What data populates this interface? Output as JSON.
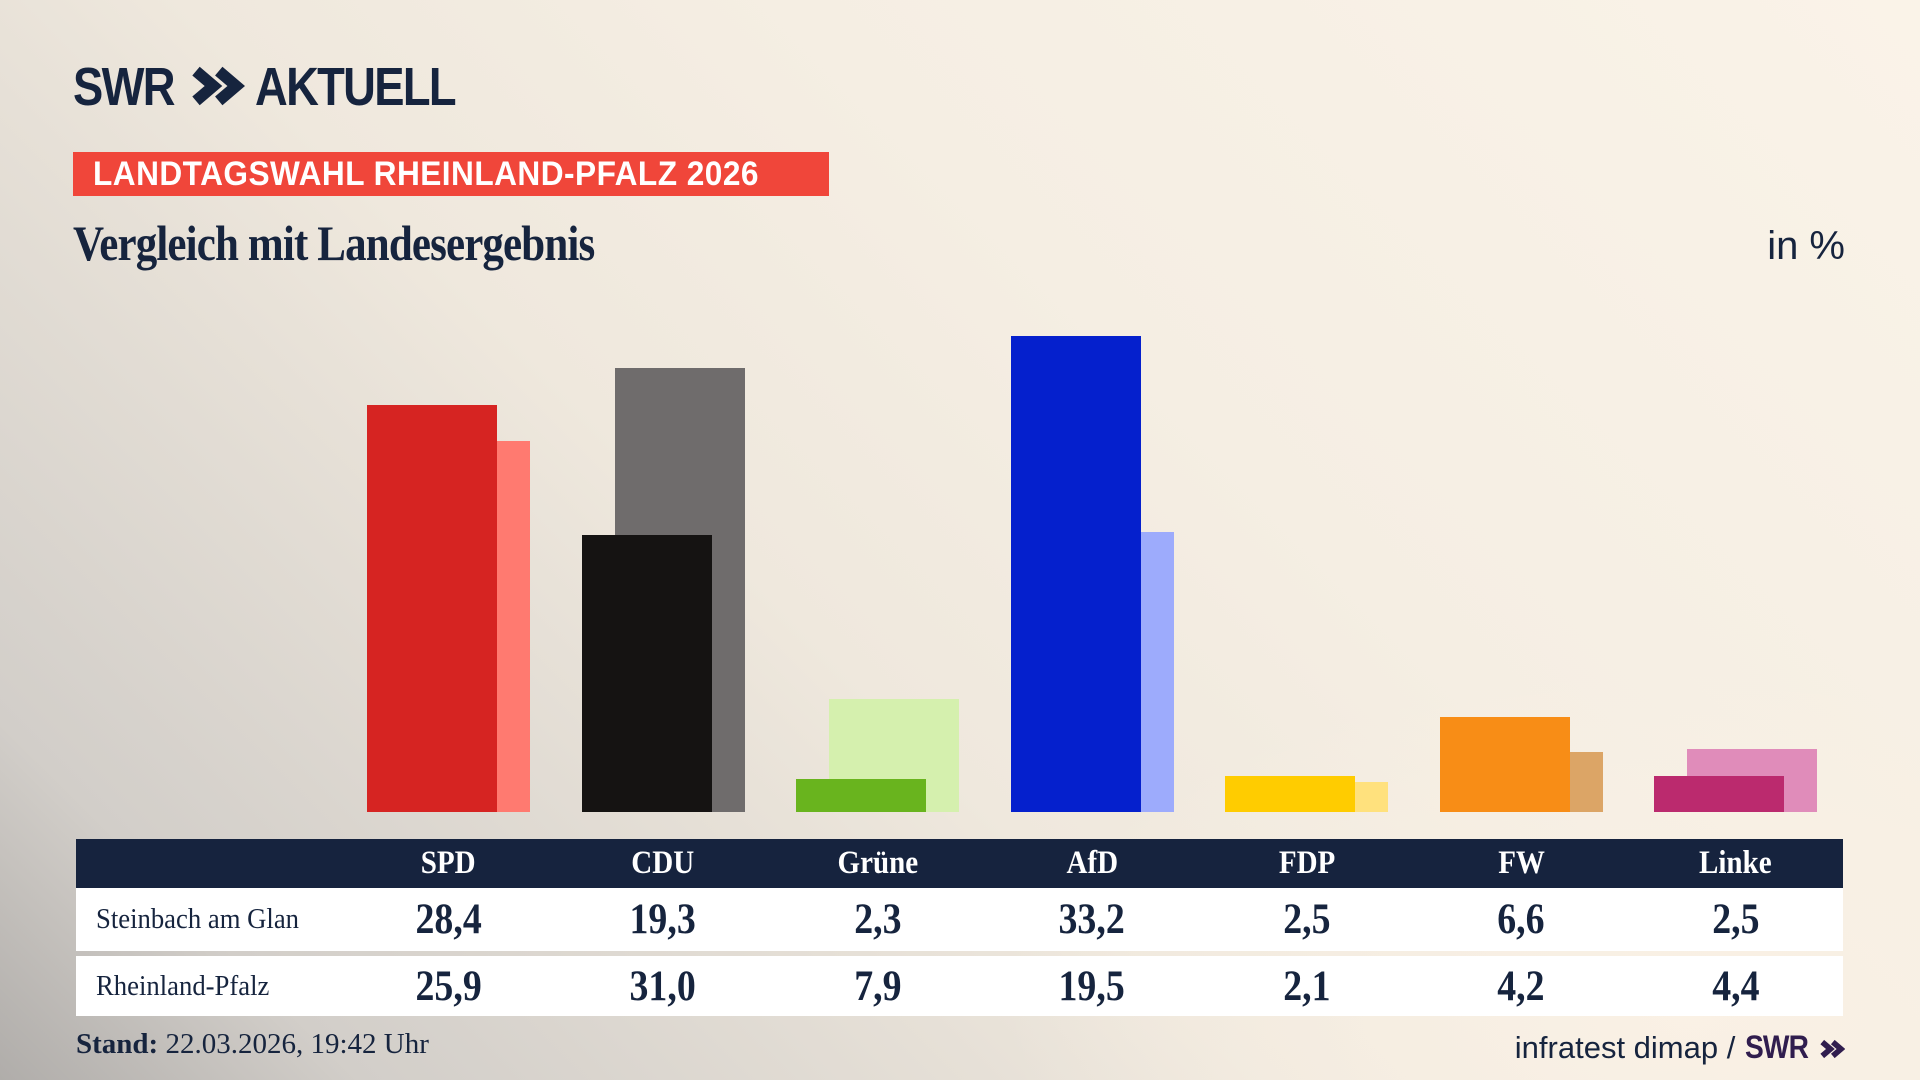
{
  "header": {
    "logo_swr": "SWR",
    "logo_aktuell": "AKTUELL",
    "banner": "LANDTAGSWAHL RHEINLAND-PFALZ 2026"
  },
  "title": "Vergleich mit Landesergebnis",
  "unit_label": "in %",
  "chart_data": {
    "type": "bar",
    "categories": [
      "SPD",
      "CDU",
      "Grüne",
      "AfD",
      "FDP",
      "FW",
      "Linke"
    ],
    "series": [
      {
        "name": "Steinbach am Glan",
        "values": [
          28.4,
          19.3,
          2.3,
          33.2,
          2.5,
          6.6,
          2.5
        ],
        "value_labels": [
          "28,4",
          "19,3",
          "2,3",
          "33,2",
          "2,5",
          "6,6",
          "2,5"
        ],
        "colors": [
          "#d62422",
          "#151312",
          "#69b41e",
          "#0520cd",
          "#ffcc00",
          "#f88d16",
          "#bb2a6e"
        ]
      },
      {
        "name": "Rheinland-Pfalz",
        "values": [
          25.9,
          31.0,
          7.9,
          19.5,
          2.1,
          4.2,
          4.4
        ],
        "value_labels": [
          "25,9",
          "31,0",
          "7,9",
          "19,5",
          "2,1",
          "4,2",
          "4,4"
        ],
        "colors": [
          "#ff7a70",
          "#6f6c6c",
          "#d5f0ae",
          "#9dabfc",
          "#ffe17d",
          "#dca566",
          "#e08cba"
        ]
      }
    ],
    "title": "Vergleich mit Landesergebnis",
    "xlabel": "",
    "ylabel": "in %",
    "ylim": [
      0,
      35
    ],
    "grid": false,
    "legend": "table-rows",
    "colors": {
      "table_header_bg": "#16233e",
      "table_row_bg": "#ffffff",
      "banner_bg": "#f0463a",
      "text_navy": "#16243e",
      "swr_purple": "#301d4e"
    }
  },
  "footer": {
    "stand_label": "Stand:",
    "stand_value": "22.03.2026, 19:42 Uhr",
    "source_text": "infratest dimap /",
    "source_logo": "SWR"
  }
}
